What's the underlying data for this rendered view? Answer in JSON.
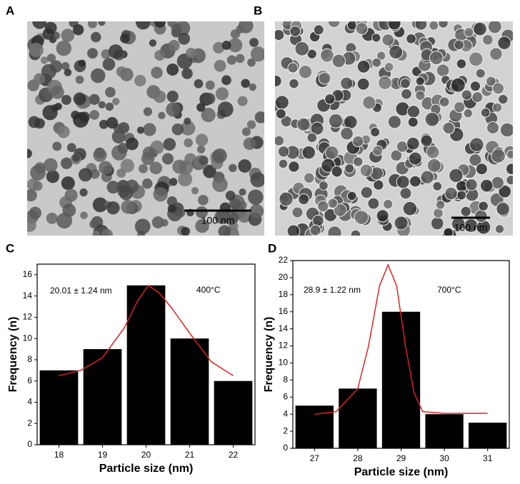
{
  "images": [
    {
      "label": "A",
      "scale_bar": "100 nm"
    },
    {
      "label": "B",
      "scale_bar": "100 nm"
    }
  ],
  "chart_data": [
    {
      "type": "bar",
      "label": "C",
      "x": [
        18,
        19,
        20,
        21,
        22
      ],
      "values": [
        7,
        9,
        15,
        10,
        6
      ],
      "color": "#000000",
      "xlim": [
        17.5,
        22.5
      ],
      "xticks": [
        18,
        19,
        20,
        21,
        22
      ],
      "ylim": [
        0,
        17
      ],
      "yticks": [
        0,
        2,
        4,
        6,
        8,
        10,
        12,
        14,
        16
      ],
      "xlabel": "Particle size (nm)",
      "ylabel": "Frequency (n)",
      "annotations": [
        "20.01 ± 1.24  nm",
        "400°C"
      ],
      "fit": {
        "color": "#e02020",
        "x": [
          18,
          18.5,
          19,
          19.5,
          19.8,
          20.05,
          20.3,
          20.6,
          21,
          21.5,
          22
        ],
        "values": [
          6.5,
          7,
          8.2,
          11,
          13.5,
          15,
          14.3,
          12.8,
          10.5,
          7.8,
          6.5
        ]
      }
    },
    {
      "type": "bar",
      "label": "D",
      "x": [
        27,
        28,
        29,
        30,
        31
      ],
      "values": [
        5,
        7,
        16,
        4,
        3
      ],
      "color": "#000000",
      "xlim": [
        26.5,
        31.5
      ],
      "xticks": [
        27,
        28,
        29,
        30,
        31
      ],
      "ylim": [
        0,
        22
      ],
      "yticks": [
        0,
        2,
        4,
        6,
        8,
        10,
        12,
        14,
        16,
        18,
        20,
        22
      ],
      "xlabel": "Particle size (nm)",
      "ylabel": "Frequency (n)",
      "annotations": [
        "28.9 ± 1.22  nm",
        "700°C"
      ],
      "fit": {
        "color": "#e02020",
        "x": [
          27,
          27.5,
          28,
          28.25,
          28.5,
          28.7,
          28.9,
          29.1,
          29.3,
          29.5,
          30,
          31
        ],
        "values": [
          4,
          4.3,
          7,
          12,
          19,
          21.5,
          19,
          12,
          6.5,
          4.3,
          4.1,
          4.1
        ]
      }
    }
  ]
}
